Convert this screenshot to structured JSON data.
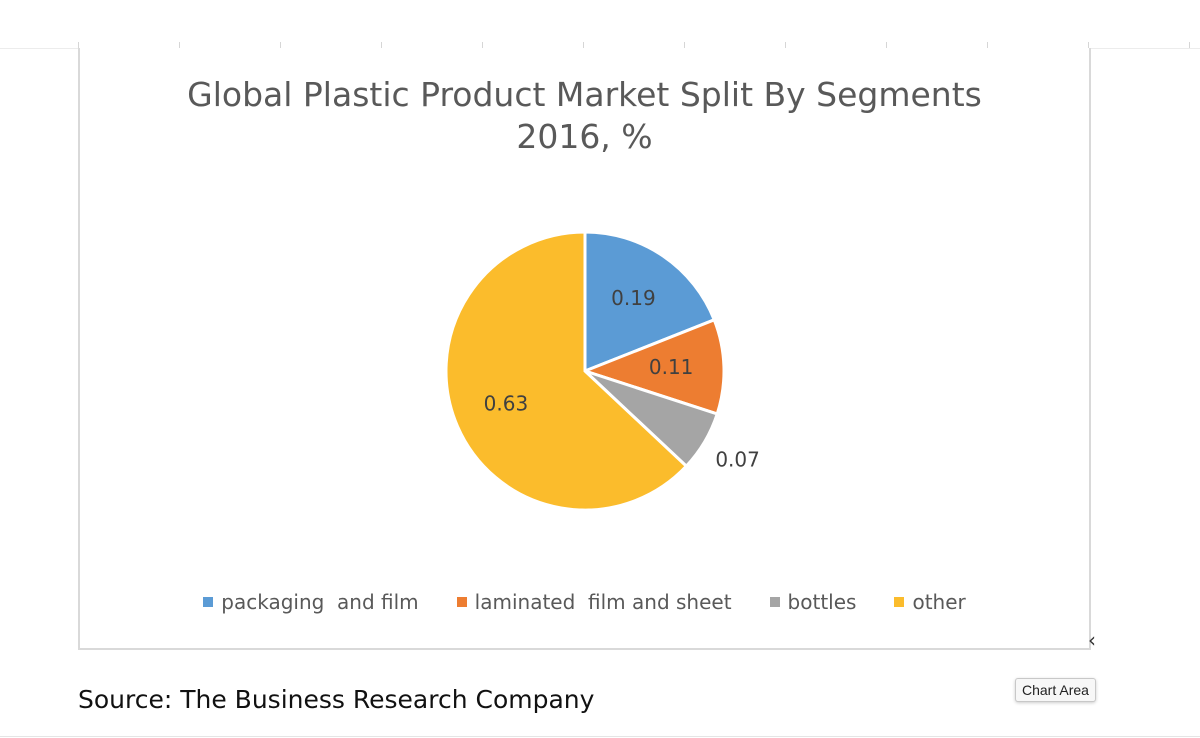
{
  "chart_data": {
    "type": "pie",
    "title": "Global Plastic Product Market Split By Segments",
    "subtitle": "2016, %",
    "categories": [
      "packaging  and film",
      "laminated  film and sheet",
      "bottles",
      "other"
    ],
    "values": [
      0.19,
      0.11,
      0.07,
      0.63
    ],
    "data_labels": [
      "0.19",
      "0.11",
      "0.07",
      "0.63"
    ],
    "colors": [
      "#5b9bd5",
      "#ed7d31",
      "#a5a5a5",
      "#fbbc2c"
    ],
    "legend_position": "bottom"
  },
  "tooltip": {
    "text": "Chart Area"
  },
  "source": {
    "text": "Source: The Business Research Company"
  },
  "icons": {
    "resize_handle": "resize-handle-icon"
  }
}
